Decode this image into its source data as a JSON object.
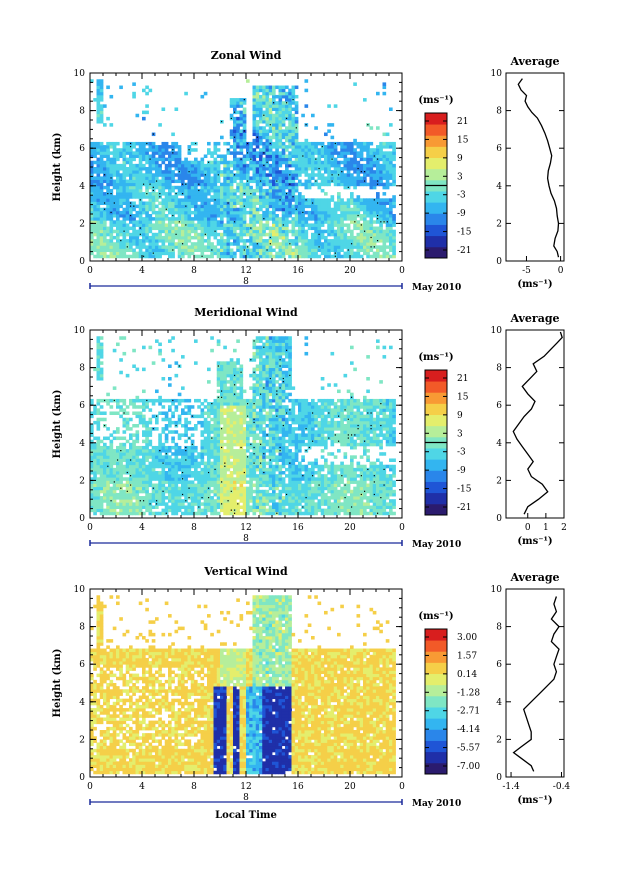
{
  "colors": {
    "scale": [
      "#2b1b6e",
      "#1f2fa8",
      "#1f55d6",
      "#2a86ea",
      "#33b5f0",
      "#4fd6e6",
      "#7fe6c4",
      "#b6ee9a",
      "#e4ee6c",
      "#f5cf48",
      "#f89a34",
      "#f25a28",
      "#d81e1e"
    ],
    "missing": "#ffffff",
    "contour": "#000000"
  },
  "chart_data": [
    {
      "type": "heatmap",
      "title": "Zonal Wind",
      "ylabel": "Height (km)",
      "xlim": [
        0,
        24
      ],
      "ylim": [
        0,
        10
      ],
      "x_ticks": [
        "0",
        "4",
        "8",
        "12",
        "16",
        "20",
        "0"
      ],
      "y_ticks": [
        "0",
        "2",
        "4",
        "6",
        "8",
        "10"
      ],
      "date_marker": "8",
      "date_label": "May 2010",
      "colorbar": {
        "unit": "(ms⁻¹)",
        "ticks": [
          "21",
          "15",
          "9",
          "3",
          "-3",
          "-9",
          "-15",
          "-21"
        ],
        "range": [
          -24,
          24
        ],
        "zero_line": 0
      },
      "average": {
        "title": "Average",
        "xlabel": "(ms⁻¹)",
        "x_ticks": [
          "-5",
          "0"
        ],
        "xlim": [
          -8,
          0.5
        ],
        "ylim": [
          0,
          10
        ],
        "y_ticks": [
          "0",
          "2",
          "4",
          "6",
          "8",
          "10"
        ],
        "profile": [
          [
            -0.3,
            0.2
          ],
          [
            -0.5,
            0.5
          ],
          [
            -1.0,
            0.8
          ],
          [
            -0.8,
            1.2
          ],
          [
            -0.4,
            1.6
          ],
          [
            -0.3,
            2.0
          ],
          [
            -0.5,
            2.4
          ],
          [
            -0.6,
            2.8
          ],
          [
            -0.9,
            3.2
          ],
          [
            -1.4,
            3.6
          ],
          [
            -1.7,
            4.0
          ],
          [
            -1.9,
            4.4
          ],
          [
            -1.8,
            4.8
          ],
          [
            -1.5,
            5.2
          ],
          [
            -1.3,
            5.6
          ],
          [
            -1.6,
            6.0
          ],
          [
            -1.9,
            6.4
          ],
          [
            -2.3,
            6.8
          ],
          [
            -2.8,
            7.2
          ],
          [
            -3.4,
            7.6
          ],
          [
            -4.2,
            7.9
          ],
          [
            -4.8,
            8.2
          ],
          [
            -5.2,
            8.5
          ],
          [
            -5.0,
            8.8
          ],
          [
            -5.8,
            9.1
          ],
          [
            -6.2,
            9.4
          ],
          [
            -5.6,
            9.7
          ]
        ]
      }
    },
    {
      "type": "heatmap",
      "title": "Meridional Wind",
      "ylabel": "Height (km)",
      "xlim": [
        0,
        24
      ],
      "ylim": [
        0,
        10
      ],
      "x_ticks": [
        "0",
        "4",
        "8",
        "12",
        "16",
        "20",
        "0"
      ],
      "y_ticks": [
        "0",
        "2",
        "4",
        "6",
        "8",
        "10"
      ],
      "date_marker": "8",
      "date_label": "May 2010",
      "colorbar": {
        "unit": "(ms⁻¹)",
        "ticks": [
          "21",
          "15",
          "9",
          "3",
          "-3",
          "-9",
          "-15",
          "-21"
        ],
        "range": [
          -24,
          24
        ],
        "zero_line": 0
      },
      "average": {
        "title": "Average",
        "xlabel": "(ms⁻¹)",
        "x_ticks": [
          "0",
          "1",
          "2"
        ],
        "xlim": [
          -1.2,
          2.0
        ],
        "ylim": [
          0,
          10
        ],
        "y_ticks": [
          "0",
          "2",
          "4",
          "6",
          "8",
          "10"
        ],
        "profile": [
          [
            -0.2,
            0.2
          ],
          [
            0.0,
            0.6
          ],
          [
            0.6,
            1.0
          ],
          [
            1.1,
            1.4
          ],
          [
            0.8,
            1.8
          ],
          [
            0.2,
            2.2
          ],
          [
            0.0,
            2.6
          ],
          [
            0.3,
            3.0
          ],
          [
            0.0,
            3.4
          ],
          [
            -0.3,
            3.8
          ],
          [
            -0.6,
            4.2
          ],
          [
            -0.8,
            4.6
          ],
          [
            -0.5,
            5.0
          ],
          [
            -0.2,
            5.4
          ],
          [
            0.2,
            5.8
          ],
          [
            0.4,
            6.2
          ],
          [
            0.0,
            6.6
          ],
          [
            -0.3,
            7.0
          ],
          [
            0.1,
            7.4
          ],
          [
            0.5,
            7.8
          ],
          [
            0.3,
            8.2
          ],
          [
            0.9,
            8.6
          ],
          [
            1.3,
            9.0
          ],
          [
            1.6,
            9.3
          ],
          [
            1.9,
            9.6
          ],
          [
            1.8,
            9.9
          ]
        ]
      }
    },
    {
      "type": "heatmap",
      "title": "Vertical Wind",
      "ylabel": "Height (km)",
      "xlabel": "Local Time",
      "xlim": [
        0,
        24
      ],
      "ylim": [
        0,
        10
      ],
      "x_ticks": [
        "0",
        "4",
        "8",
        "12",
        "16",
        "20",
        "0"
      ],
      "y_ticks": [
        "0",
        "2",
        "4",
        "6",
        "8",
        "10"
      ],
      "date_marker": "8",
      "date_label": "May 2010",
      "colorbar": {
        "unit": "(ms⁻¹)",
        "ticks": [
          "3.00",
          "1.57",
          "0.14",
          "-1.28",
          "-2.71",
          "-4.14",
          "-5.57",
          "-7.00"
        ],
        "range": [
          -7.7,
          3.7
        ],
        "zero_line": null
      },
      "average": {
        "title": "Average",
        "xlabel": "(ms⁻¹)",
        "x_ticks": [
          "-1.4",
          "-0.4"
        ],
        "xlim": [
          -1.5,
          -0.35
        ],
        "ylim": [
          0,
          10
        ],
        "y_ticks": [
          "0",
          "2",
          "4",
          "6",
          "8",
          "10"
        ],
        "profile": [
          [
            -0.95,
            0.3
          ],
          [
            -1.0,
            0.6
          ],
          [
            -1.2,
            1.0
          ],
          [
            -1.35,
            1.3
          ],
          [
            -1.2,
            1.6
          ],
          [
            -1.0,
            2.0
          ],
          [
            -1.0,
            2.4
          ],
          [
            -1.05,
            2.8
          ],
          [
            -1.1,
            3.2
          ],
          [
            -1.15,
            3.6
          ],
          [
            -1.0,
            4.0
          ],
          [
            -0.85,
            4.4
          ],
          [
            -0.7,
            4.8
          ],
          [
            -0.55,
            5.2
          ],
          [
            -0.5,
            5.6
          ],
          [
            -0.55,
            6.0
          ],
          [
            -0.5,
            6.4
          ],
          [
            -0.45,
            6.8
          ],
          [
            -0.6,
            7.2
          ],
          [
            -0.55,
            7.6
          ],
          [
            -0.45,
            8.0
          ],
          [
            -0.6,
            8.4
          ],
          [
            -0.5,
            8.8
          ],
          [
            -0.55,
            9.2
          ],
          [
            -0.5,
            9.6
          ]
        ]
      }
    }
  ]
}
